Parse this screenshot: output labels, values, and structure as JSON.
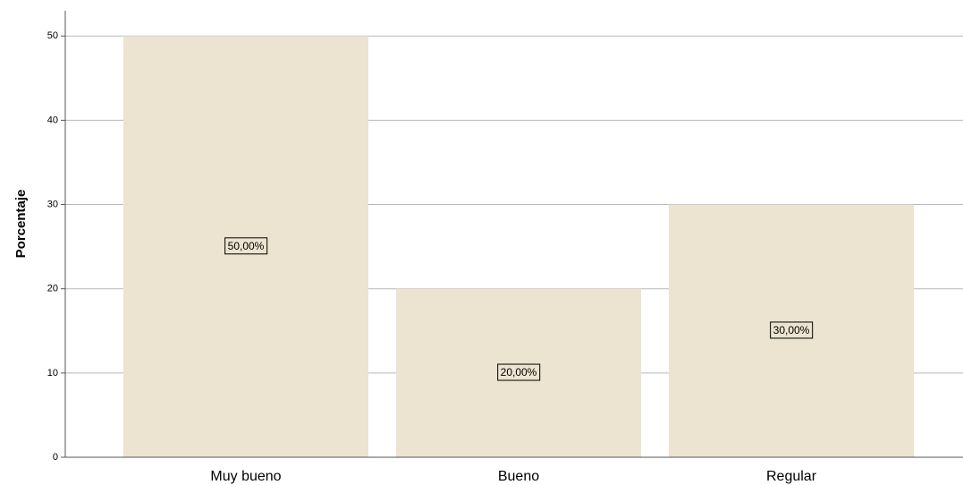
{
  "chart_data": {
    "type": "bar",
    "y_label": "Porcentaje",
    "categories": [
      "Muy bueno",
      "Bueno",
      "Regular"
    ],
    "values": [
      50,
      20,
      30
    ],
    "value_labels": [
      "50,00%",
      "20,00%",
      "30,00%"
    ],
    "color": "#ece3d0",
    "ylim": [
      0,
      53
    ],
    "yticks": [
      0,
      10,
      20,
      30,
      40,
      50
    ],
    "grid": true
  }
}
